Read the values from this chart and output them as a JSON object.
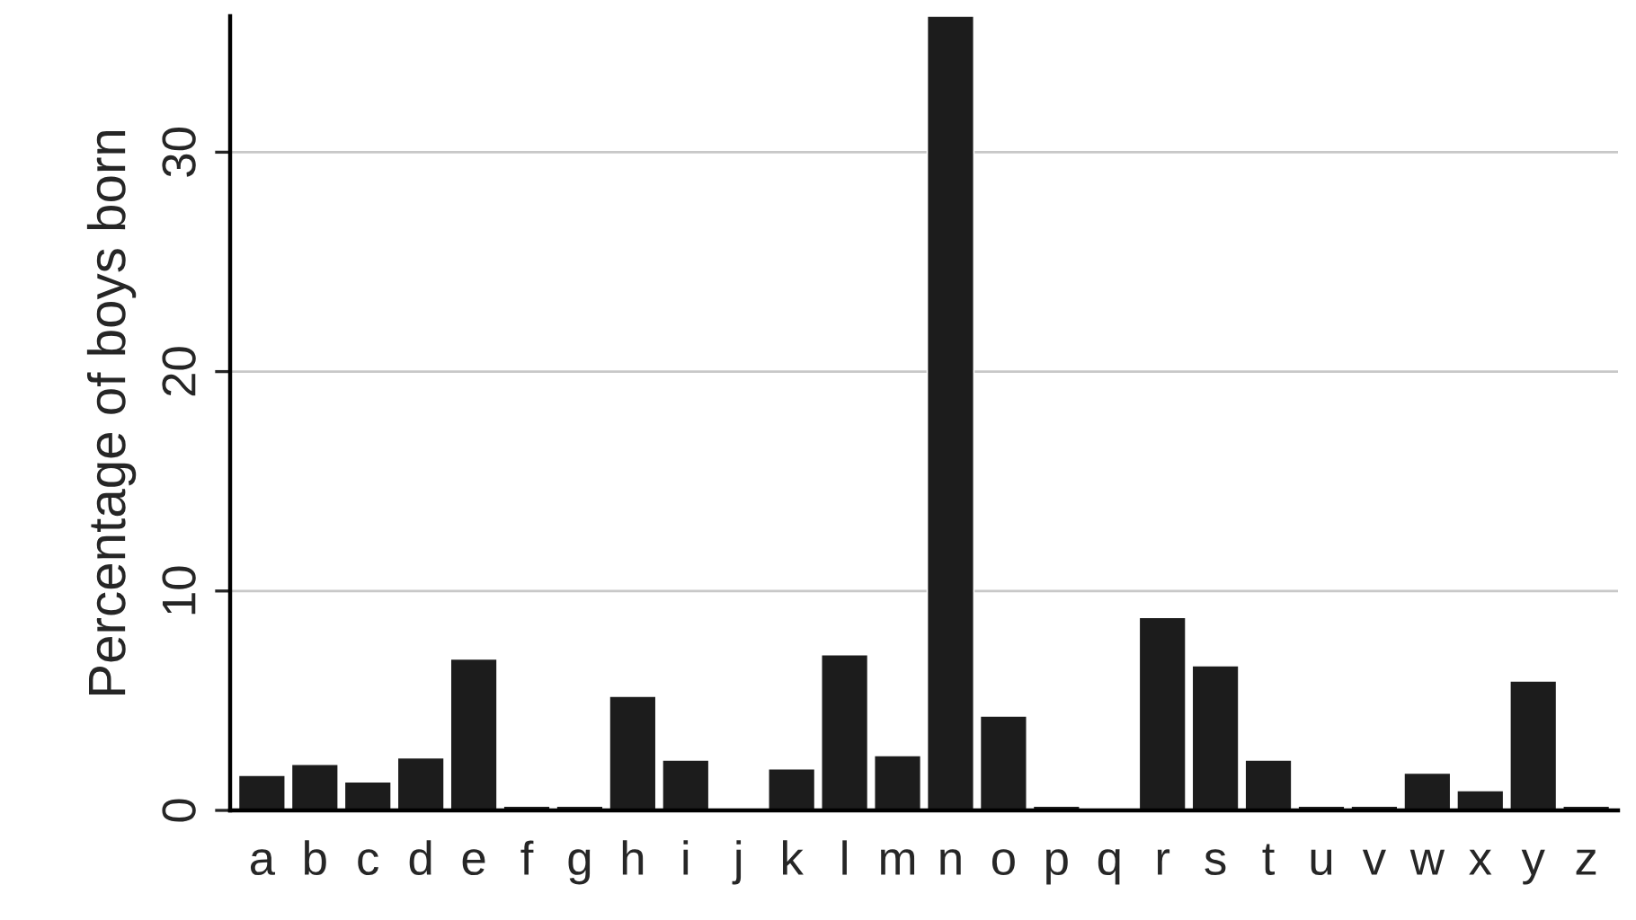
{
  "chart_data": {
    "type": "bar",
    "ylabel": "Percentage of boys born",
    "categories": [
      "a",
      "b",
      "c",
      "d",
      "e",
      "f",
      "g",
      "h",
      "i",
      "j",
      "k",
      "l",
      "m",
      "n",
      "o",
      "p",
      "q",
      "r",
      "s",
      "t",
      "u",
      "v",
      "w",
      "x",
      "y",
      "z"
    ],
    "values": [
      1.6,
      2.1,
      1.3,
      2.4,
      6.9,
      0.2,
      0.2,
      5.2,
      2.3,
      0.1,
      1.9,
      7.1,
      2.5,
      36.2,
      4.3,
      0.2,
      0.05,
      8.8,
      6.6,
      2.3,
      0.2,
      0.2,
      1.7,
      0.9,
      5.9,
      0.2
    ],
    "color": "#1c1c1c",
    "ylim": [
      0,
      36.2
    ],
    "yticks": [
      0,
      10,
      20,
      30
    ],
    "grid": "y"
  }
}
